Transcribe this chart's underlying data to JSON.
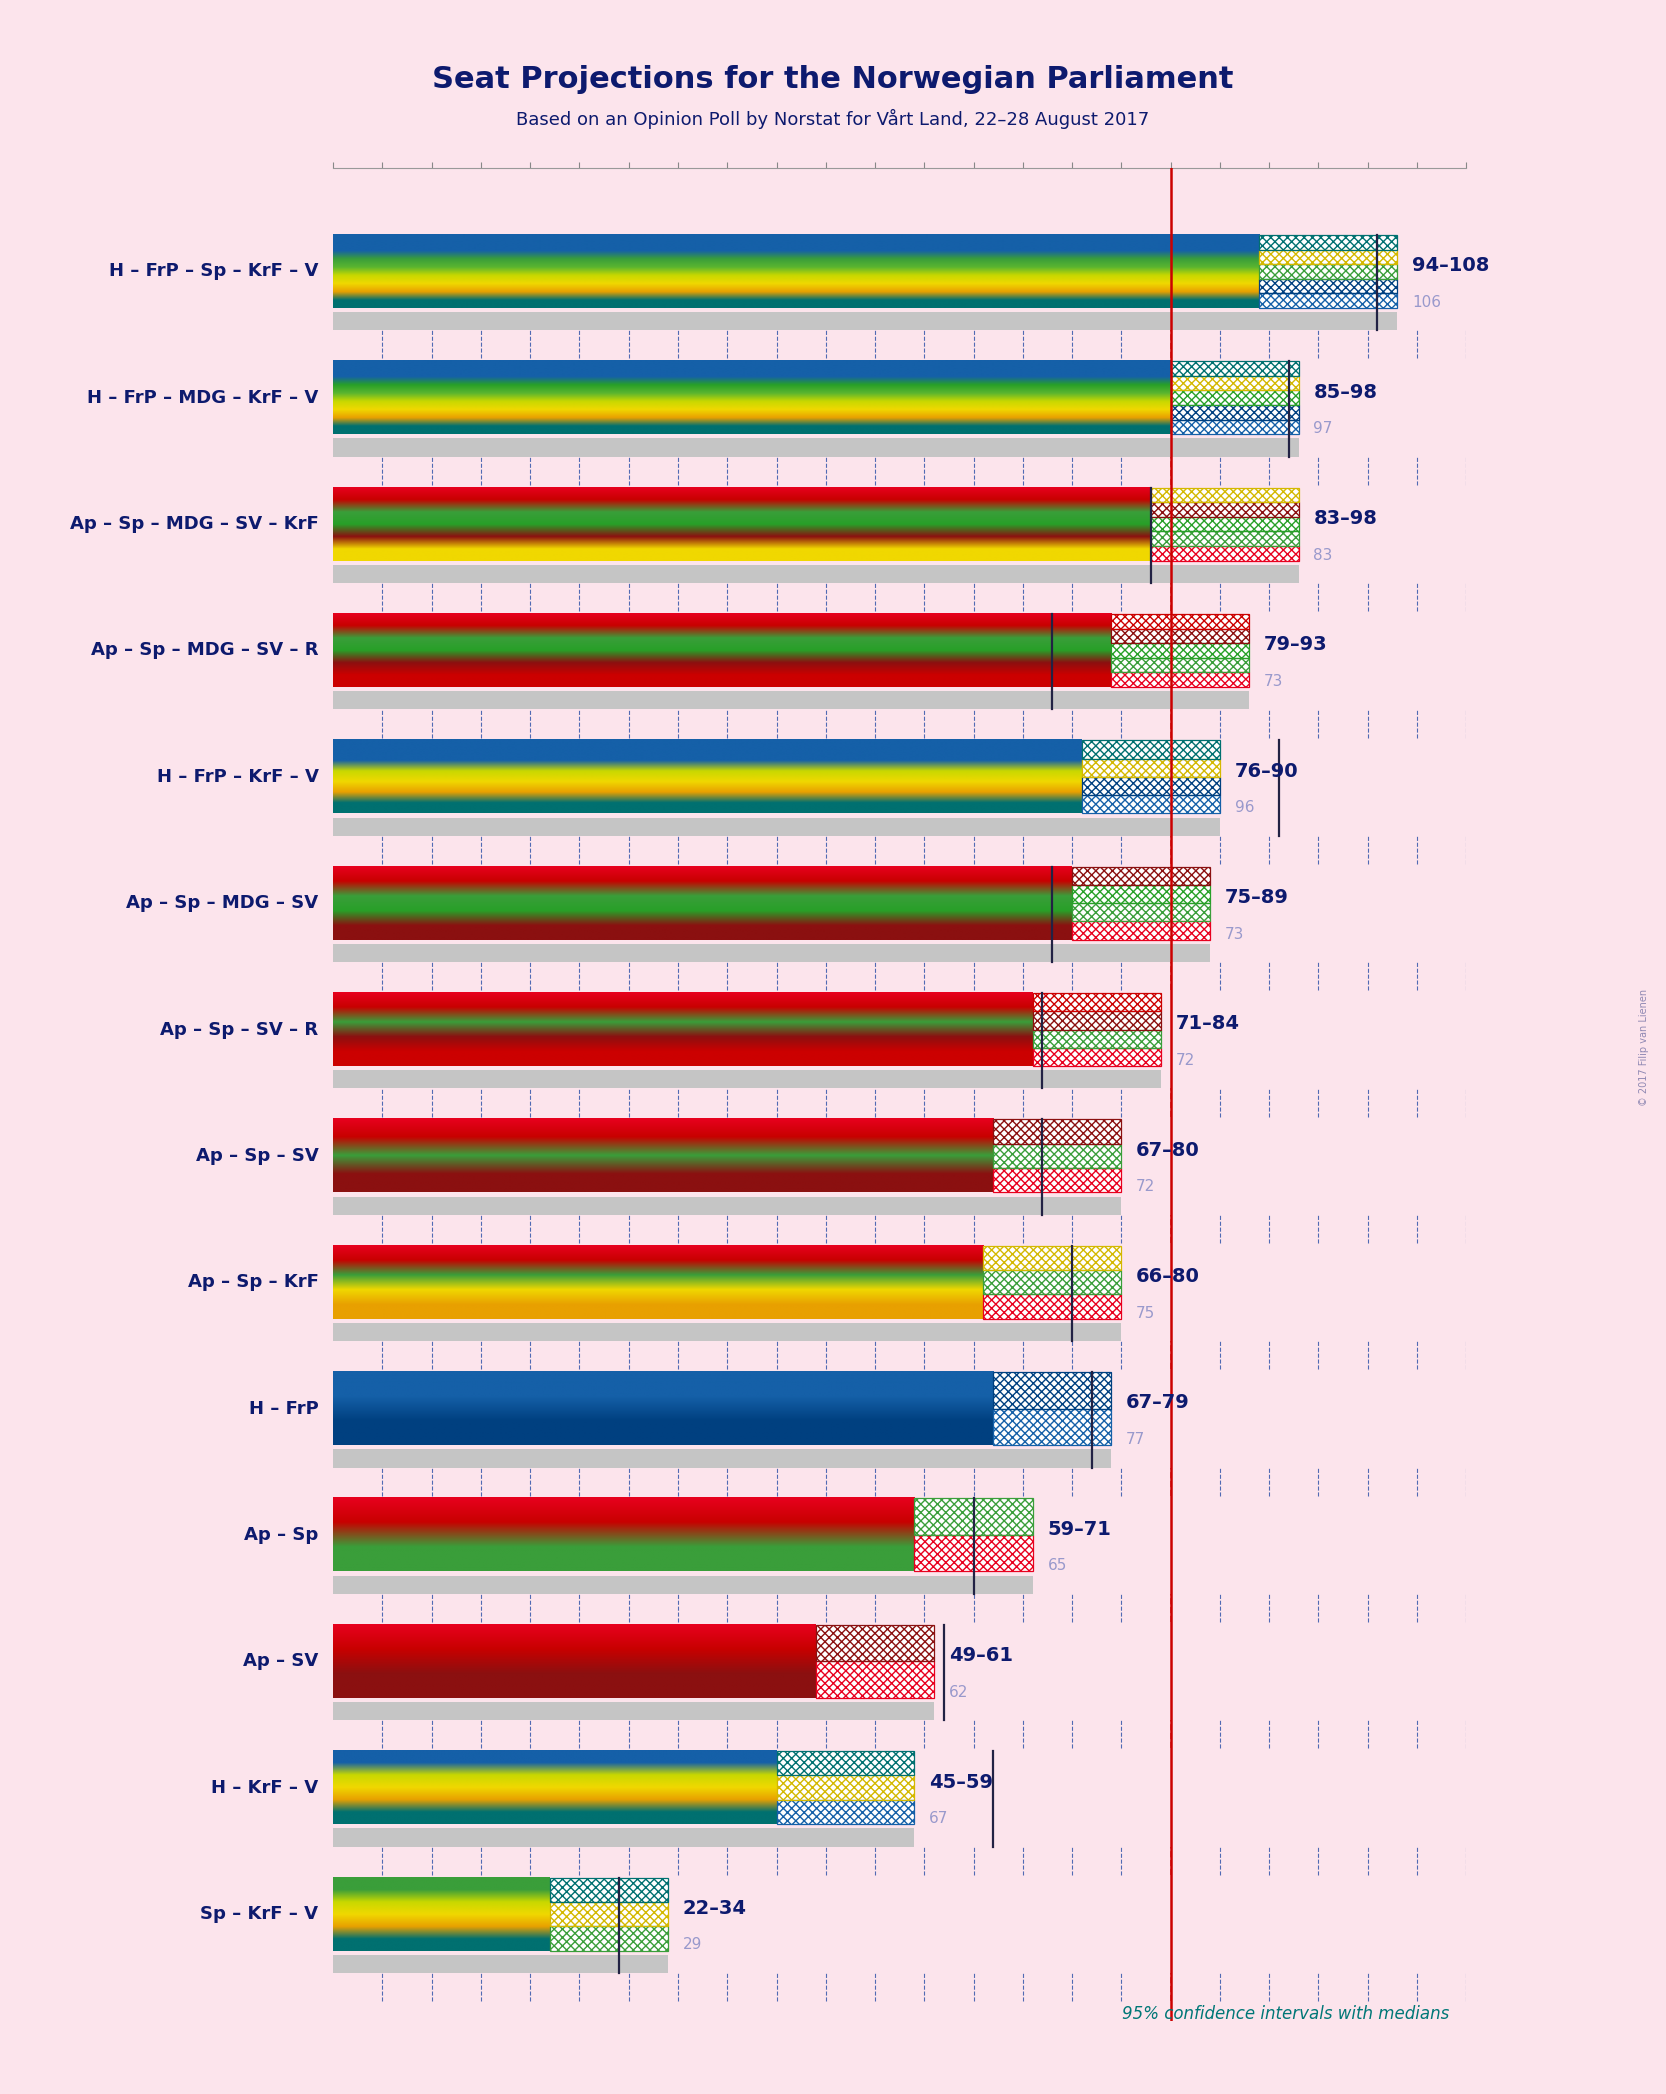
{
  "title": "Seat Projections for the Norwegian Parliament",
  "subtitle": "Based on an Opinion Poll by Norstat for Vårt Land, 22–28 August 2017",
  "footnote": "95% confidence intervals with medians",
  "watermark": "© 2017 Filip van Lienen",
  "background_color": "#fce4ec",
  "majority_line": 85,
  "x_min": 0,
  "x_max": 115,
  "tick_interval": 5,
  "coalitions": [
    {
      "label": "H – FrP – Sp – KrF – V",
      "ci_low": 94,
      "ci_high": 108,
      "median": 106,
      "stripe_colors": [
        "#1560a8",
        "#1560a8",
        "#1560a8",
        "#3a9e3a",
        "#5ab530",
        "#c8d800",
        "#f0d800",
        "#e8a000",
        "#007070"
      ],
      "hatch_colors": [
        "#1560a8",
        "#004080",
        "#3a9e3a",
        "#d4b800",
        "#007070"
      ]
    },
    {
      "label": "H – FrP – MDG – KrF – V",
      "ci_low": 85,
      "ci_high": 98,
      "median": 97,
      "stripe_colors": [
        "#1560a8",
        "#1560a8",
        "#1560a8",
        "#28a028",
        "#5ab530",
        "#c8d800",
        "#f0d800",
        "#e8a000",
        "#007070"
      ],
      "hatch_colors": [
        "#1560a8",
        "#004080",
        "#28a028",
        "#d4b800",
        "#007070"
      ]
    },
    {
      "label": "Ap – Sp – MDG – SV – KrF",
      "ci_low": 83,
      "ci_high": 98,
      "median": 83,
      "stripe_colors": [
        "#e8001e",
        "#c80000",
        "#3a9e3a",
        "#28a028",
        "#8b1010",
        "#f0d800"
      ],
      "hatch_colors": [
        "#e8001e",
        "#3a9e3a",
        "#28a028",
        "#8b1010",
        "#d4b800"
      ]
    },
    {
      "label": "Ap – Sp – MDG – SV – R",
      "ci_low": 79,
      "ci_high": 93,
      "median": 73,
      "stripe_colors": [
        "#e8001e",
        "#c80000",
        "#3a9e3a",
        "#28a028",
        "#8b1010",
        "#cc0000"
      ],
      "hatch_colors": [
        "#e8001e",
        "#3a9e3a",
        "#28a028",
        "#8b1010",
        "#cc0000"
      ]
    },
    {
      "label": "H – FrP – KrF – V",
      "ci_low": 76,
      "ci_high": 90,
      "median": 96,
      "stripe_colors": [
        "#1560a8",
        "#1560a8",
        "#1560a8",
        "#c8d800",
        "#f0d800",
        "#e8a000",
        "#007070"
      ],
      "hatch_colors": [
        "#1560a8",
        "#004080",
        "#d4b800",
        "#007070"
      ]
    },
    {
      "label": "Ap – Sp – MDG – SV",
      "ci_low": 75,
      "ci_high": 89,
      "median": 73,
      "stripe_colors": [
        "#e8001e",
        "#c80000",
        "#3a9e3a",
        "#28a028",
        "#8b1010"
      ],
      "hatch_colors": [
        "#e8001e",
        "#3a9e3a",
        "#28a028",
        "#8b1010"
      ]
    },
    {
      "label": "Ap – Sp – SV – R",
      "ci_low": 71,
      "ci_high": 84,
      "median": 72,
      "stripe_colors": [
        "#e8001e",
        "#c80000",
        "#3a9e3a",
        "#8b1010",
        "#cc0000"
      ],
      "hatch_colors": [
        "#e8001e",
        "#3a9e3a",
        "#8b1010",
        "#cc0000"
      ]
    },
    {
      "label": "Ap – Sp – SV",
      "ci_low": 67,
      "ci_high": 80,
      "median": 72,
      "stripe_colors": [
        "#e8001e",
        "#c80000",
        "#3a9e3a",
        "#8b1010"
      ],
      "hatch_colors": [
        "#e8001e",
        "#3a9e3a",
        "#8b1010"
      ]
    },
    {
      "label": "Ap – Sp – KrF",
      "ci_low": 66,
      "ci_high": 80,
      "median": 75,
      "stripe_colors": [
        "#e8001e",
        "#c80000",
        "#3a9e3a",
        "#f0d800",
        "#e8a000"
      ],
      "hatch_colors": [
        "#e8001e",
        "#3a9e3a",
        "#d4b800"
      ]
    },
    {
      "label": "H – FrP",
      "ci_low": 67,
      "ci_high": 79,
      "median": 77,
      "stripe_colors": [
        "#1560a8",
        "#1560a8",
        "#004080"
      ],
      "hatch_colors": [
        "#1560a8",
        "#004080"
      ]
    },
    {
      "label": "Ap – Sp",
      "ci_low": 59,
      "ci_high": 71,
      "median": 65,
      "stripe_colors": [
        "#e8001e",
        "#c80000",
        "#3a9e3a"
      ],
      "hatch_colors": [
        "#e8001e",
        "#3a9e3a"
      ]
    },
    {
      "label": "Ap – SV",
      "ci_low": 49,
      "ci_high": 61,
      "median": 62,
      "stripe_colors": [
        "#e8001e",
        "#c80000",
        "#8b1010"
      ],
      "hatch_colors": [
        "#e8001e",
        "#8b1010"
      ]
    },
    {
      "label": "H – KrF – V",
      "ci_low": 45,
      "ci_high": 59,
      "median": 67,
      "stripe_colors": [
        "#1560a8",
        "#1560a8",
        "#c8d800",
        "#f0d800",
        "#e8a000",
        "#007070"
      ],
      "hatch_colors": [
        "#1560a8",
        "#d4b800",
        "#007070"
      ]
    },
    {
      "label": "Sp – KrF – V",
      "ci_low": 22,
      "ci_high": 34,
      "median": 29,
      "stripe_colors": [
        "#3a9e3a",
        "#3a9e3a",
        "#c8d800",
        "#f0d800",
        "#e8a000",
        "#007070"
      ],
      "hatch_colors": [
        "#3a9e3a",
        "#d4b800",
        "#007070"
      ]
    }
  ]
}
